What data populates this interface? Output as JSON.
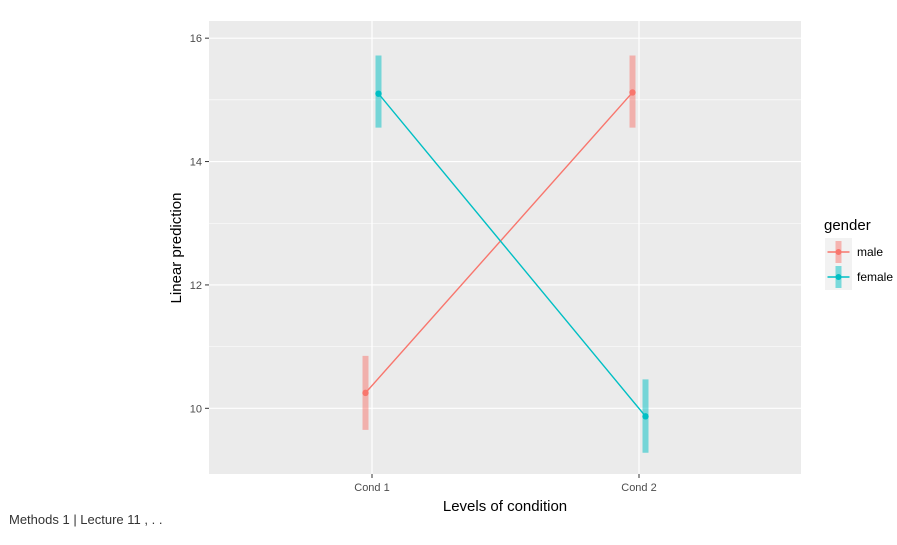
{
  "chart_data": {
    "type": "line",
    "categories": [
      "Cond 1",
      "Cond 2"
    ],
    "xlabel": "Levels of condition",
    "ylabel": "Linear prediction",
    "ylim": [
      9,
      16
    ],
    "yticks": [
      10,
      12,
      14,
      16
    ],
    "grid": true,
    "legend": {
      "title": "gender",
      "position": "right"
    },
    "series": [
      {
        "name": "male",
        "color": "#F8766D",
        "values": [
          10.25,
          15.12
        ],
        "lower": [
          9.65,
          14.55
        ],
        "upper": [
          10.85,
          15.72
        ]
      },
      {
        "name": "female",
        "color": "#00BFC4",
        "values": [
          15.1,
          9.87
        ],
        "lower": [
          14.55,
          9.28
        ],
        "upper": [
          15.72,
          10.47
        ]
      }
    ]
  },
  "footer": {
    "text": "Methods 1 | Lecture 11 , . ."
  }
}
